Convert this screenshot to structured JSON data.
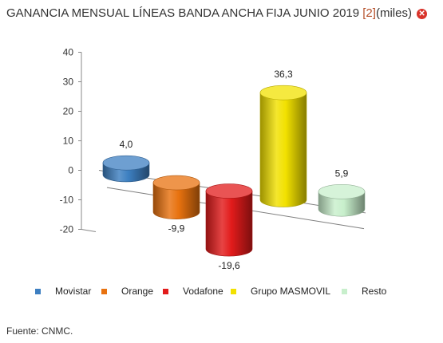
{
  "title": {
    "main": "GANANCIA MENSUAL LÍNEAS BANDA ANCHA FIJA JUNIO 2019 ",
    "ref": "[2]",
    "suffix": "(miles)",
    "close_icon": "close-icon",
    "close_glyph": "✕"
  },
  "source": "Fuente: CNMC.",
  "chart_data": {
    "type": "bar",
    "style": "3d-cylinder",
    "categories": [
      "Movistar",
      "Orange",
      "Vodafone",
      "Grupo MASMOVIL",
      "Resto"
    ],
    "values": [
      4.0,
      -9.9,
      -19.6,
      36.3,
      5.9
    ],
    "value_labels": [
      "4,0",
      "-9,9",
      "-19,6",
      "36,3",
      "5,9"
    ],
    "colors": [
      "#3d7fc1",
      "#e8720f",
      "#e21b1b",
      "#f2e100",
      "#c8efcc"
    ],
    "yticks": [
      40,
      30,
      20,
      10,
      0,
      -10,
      -20
    ],
    "ylim": [
      -20,
      40
    ],
    "grid": false,
    "legend_position": "bottom"
  }
}
